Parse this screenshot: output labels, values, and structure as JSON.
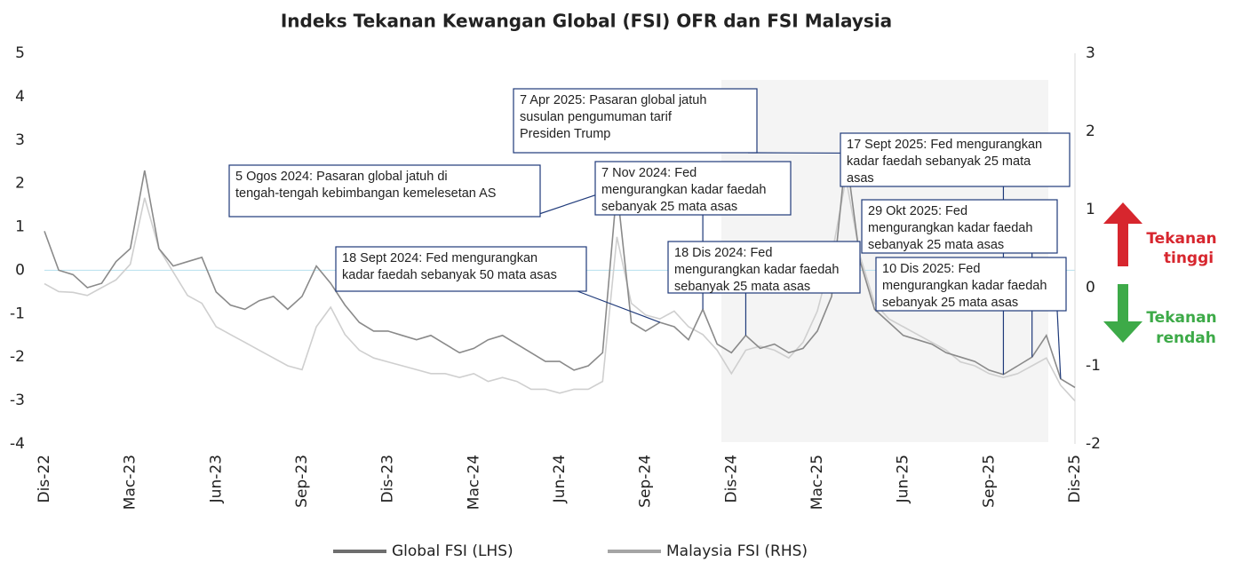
{
  "chart_data": {
    "type": "line",
    "title": "Indeks Tekanan Kewangan Global (FSI) OFR dan FSI Malaysia",
    "categories": [
      "Dis-22",
      null,
      null,
      null,
      null,
      null,
      "Mac-23",
      null,
      null,
      null,
      null,
      null,
      "Jun-23",
      null,
      null,
      null,
      null,
      null,
      "Sep-23",
      null,
      null,
      null,
      null,
      null,
      "Dis-23",
      null,
      null,
      null,
      null,
      null,
      "Mac-24",
      null,
      null,
      null,
      null,
      null,
      "Jun-24",
      null,
      null,
      null,
      null,
      null,
      "Sep-24",
      null,
      null,
      null,
      null,
      null,
      "Dis-24",
      null,
      null,
      null,
      null,
      null,
      "Mac-25",
      null,
      null,
      null,
      null,
      null,
      "Jun-25",
      null,
      null,
      null,
      null,
      null,
      "Sep-25",
      null,
      null,
      null,
      null,
      null,
      "Dis-25"
    ],
    "series": [
      {
        "name": "Global FSI (LHS)",
        "color": "#8a8a8a",
        "legend_color": "#6e6e6e",
        "values": [
          0.9,
          0.0,
          -0.1,
          -0.4,
          -0.3,
          0.2,
          0.5,
          2.3,
          0.5,
          0.1,
          0.2,
          0.3,
          -0.5,
          -0.8,
          -0.9,
          -0.7,
          -0.6,
          -0.9,
          -0.6,
          0.1,
          -0.3,
          -0.8,
          -1.2,
          -1.4,
          -1.4,
          -1.5,
          -1.6,
          -1.5,
          -1.7,
          -1.9,
          -1.8,
          -1.6,
          -1.5,
          -1.7,
          -1.9,
          -2.1,
          -2.1,
          -2.3,
          -2.2,
          -1.9,
          1.9,
          -1.2,
          -1.4,
          -1.2,
          -1.3,
          -1.6,
          -0.9,
          -1.7,
          -1.9,
          -1.5,
          -1.8,
          -1.7,
          -1.9,
          -1.8,
          -1.4,
          -0.6,
          2.7,
          0.2,
          -0.9,
          -1.2,
          -1.5,
          -1.6,
          -1.7,
          -1.9,
          -2.0,
          -2.1,
          -2.3,
          -2.4,
          -2.2,
          -2.0,
          -1.5,
          -2.5,
          -2.7
        ]
      },
      {
        "name": "Malaysia FSI (RHS)",
        "color": "#cfcfcf",
        "legend_color": "#a5a5a5",
        "axis": "y2",
        "values": [
          0.05,
          -0.05,
          -0.06,
          -0.1,
          0.0,
          0.1,
          0.3,
          1.15,
          0.5,
          0.2,
          -0.1,
          -0.2,
          -0.5,
          -0.6,
          -0.7,
          -0.8,
          -0.9,
          -1.0,
          -1.05,
          -0.5,
          -0.25,
          -0.6,
          -0.8,
          -0.9,
          -0.95,
          -1.0,
          -1.05,
          -1.1,
          -1.1,
          -1.15,
          -1.1,
          -1.2,
          -1.15,
          -1.2,
          -1.3,
          -1.3,
          -1.35,
          -1.3,
          -1.3,
          -1.2,
          0.65,
          -0.2,
          -0.35,
          -0.4,
          -0.3,
          -0.5,
          -0.6,
          -0.8,
          -1.1,
          -0.8,
          -0.75,
          -0.8,
          -0.9,
          -0.7,
          -0.3,
          0.4,
          1.4,
          0.4,
          -0.2,
          -0.4,
          -0.5,
          -0.6,
          -0.7,
          -0.8,
          -0.95,
          -1.0,
          -1.1,
          -1.15,
          -1.1,
          -1.0,
          -0.9,
          -1.25,
          -1.45
        ]
      }
    ],
    "ylim": [
      -4,
      5
    ],
    "yticks": [
      -4,
      -3,
      -2,
      -1,
      0,
      1,
      2,
      3,
      4,
      5
    ],
    "y2lim": [
      -2,
      3
    ],
    "y2ticks": [
      -2,
      -1,
      0,
      1,
      2,
      3
    ],
    "annotations": [
      {
        "lines": [
          "5 Ogos 2024: Pasaran global jatuh di",
          "tengah-tengah kebimbangan kemelesetan AS"
        ]
      },
      {
        "lines": [
          "18 Sept 2024: Fed mengurangkan",
          "kadar faedah sebanyak 50 mata asas"
        ]
      },
      {
        "lines": [
          "7 Apr 2025: Pasaran global jatuh",
          "susulan pengumuman tarif",
          "Presiden Trump"
        ]
      },
      {
        "lines": [
          "7 Nov 2024: Fed",
          "mengurangkan kadar faedah",
          "sebanyak 25 mata asas"
        ]
      },
      {
        "lines": [
          "18 Dis 2024: Fed",
          "mengurangkan kadar faedah",
          "sebanyak 25 mata asas"
        ]
      },
      {
        "lines": [
          "17 Sept 2025: Fed mengurangkan",
          "kadar faedah sebanyak 25 mata",
          "asas"
        ]
      },
      {
        "lines": [
          "29 Okt 2025: Fed",
          "mengurangkan kadar faedah",
          "sebanyak 25 mata asas"
        ]
      },
      {
        "lines": [
          "10 Dis 2025: Fed",
          "mengurangkan kadar faedah",
          "sebanyak 25 mata asas"
        ]
      }
    ],
    "high_label": [
      "Tekanan",
      "tinggi"
    ],
    "low_label": [
      "Tekanan",
      "rendah"
    ]
  }
}
